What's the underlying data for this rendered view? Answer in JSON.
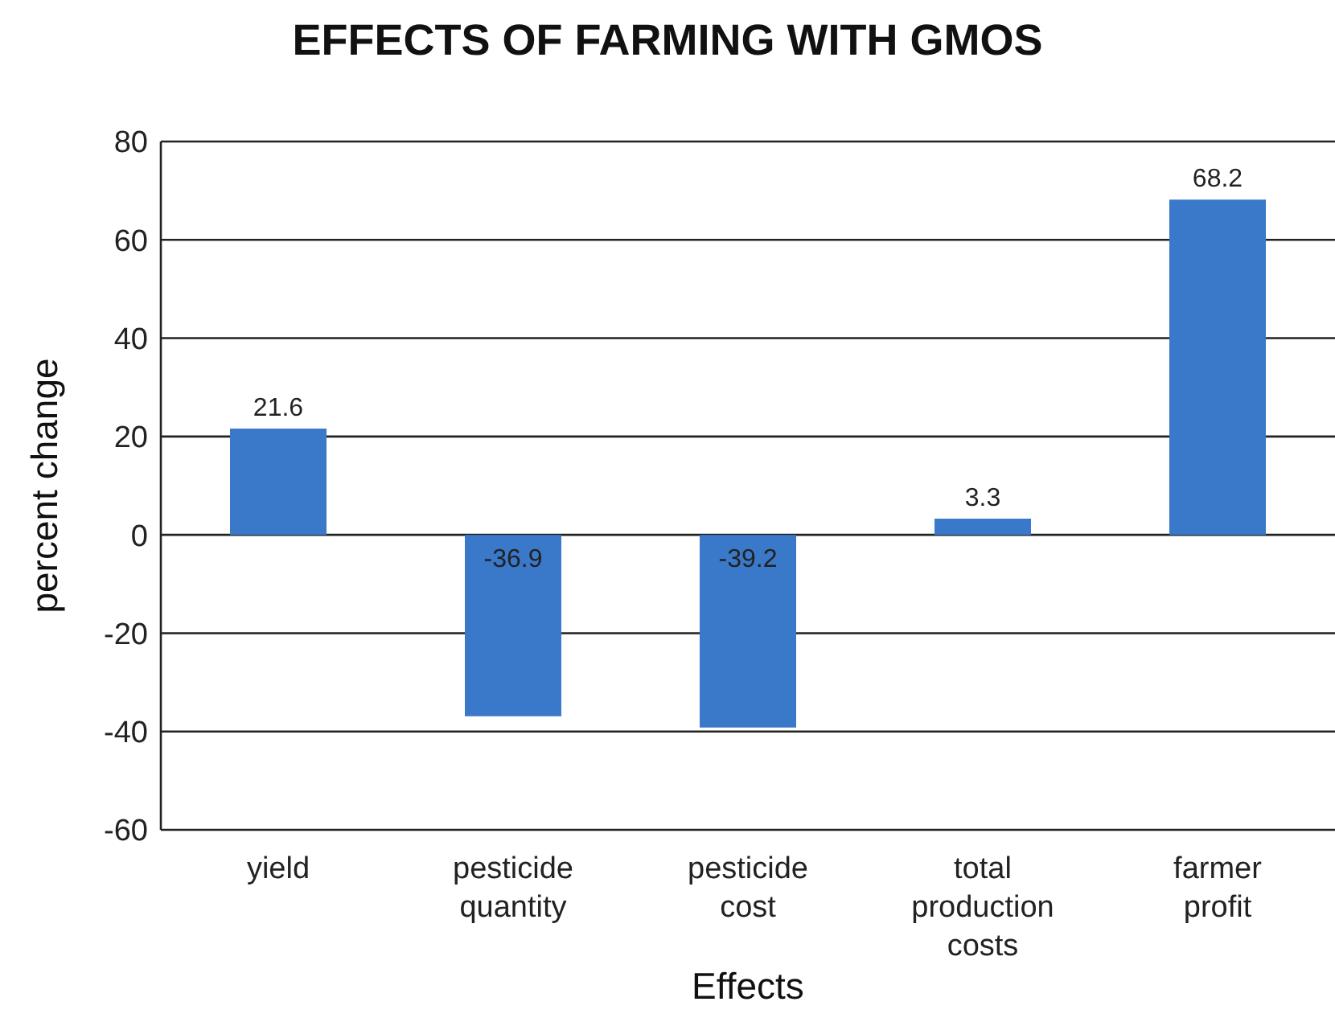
{
  "chart_data": {
    "type": "bar",
    "title": "EFFECTS OF FARMING WITH GMOS",
    "xlabel": "Effects",
    "ylabel": "percent change",
    "categories": [
      "yield",
      "pesticide quantity",
      "pesticide cost",
      "total production costs",
      "farmer profit"
    ],
    "values": [
      21.6,
      -36.9,
      -39.2,
      3.3,
      68.2
    ],
    "color": "#3a78c9",
    "ylim": [
      -60,
      80
    ],
    "yticks": [
      -60,
      -40,
      -20,
      0,
      20,
      40,
      60,
      80
    ],
    "grid": "y",
    "data_labels": true
  }
}
